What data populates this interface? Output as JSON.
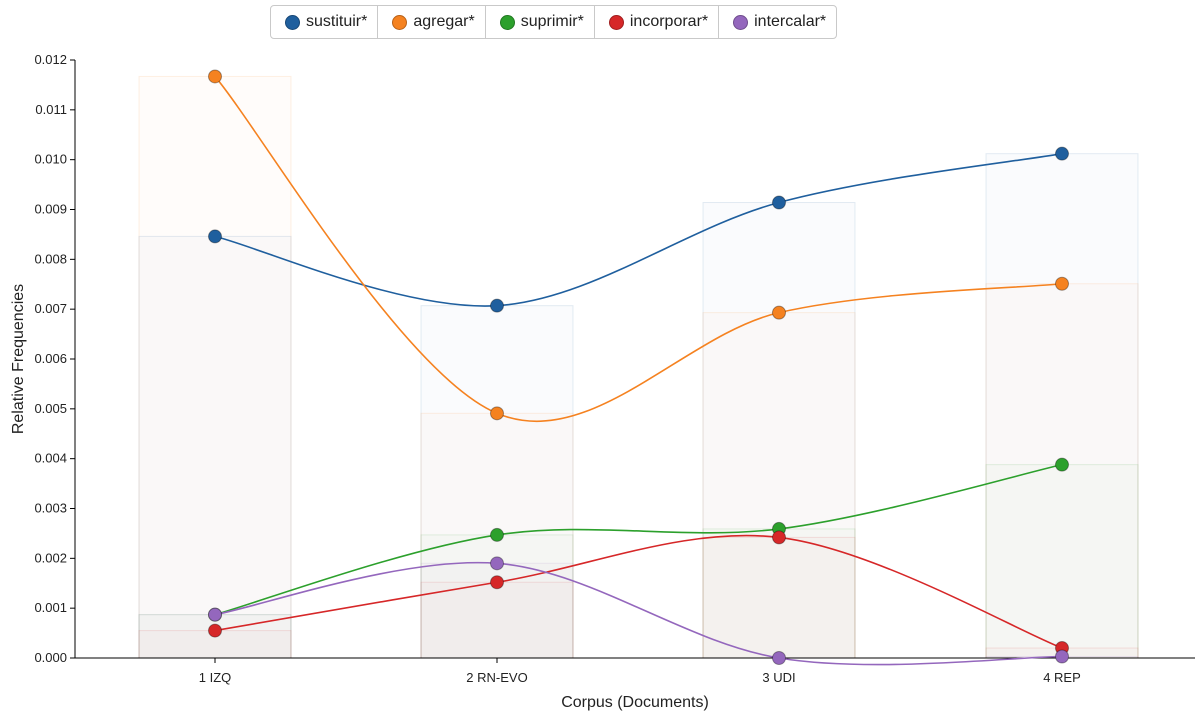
{
  "chart_data": {
    "type": "line",
    "xlabel": "Corpus (Documents)",
    "ylabel": "Relative Frequencies",
    "ylim": [
      0,
      0.012
    ],
    "yticks": [
      "0.000",
      "0.001",
      "0.002",
      "0.003",
      "0.004",
      "0.005",
      "0.006",
      "0.007",
      "0.008",
      "0.009",
      "0.010",
      "0.011",
      "0.012"
    ],
    "categories": [
      "1 IZQ",
      "2 RN-EVO",
      "3 UDI",
      "4 REP"
    ],
    "legend_position": "top",
    "series": [
      {
        "name": "sustituir*",
        "color": "#1f5f9e",
        "values": [
          0.00846,
          0.00707,
          0.00914,
          0.01012
        ]
      },
      {
        "name": "agregar*",
        "color": "#f58220",
        "values": [
          0.01167,
          0.00491,
          0.00693,
          0.00751
        ]
      },
      {
        "name": "suprimir*",
        "color": "#2ca02c",
        "values": [
          0.00087,
          0.00247,
          0.00259,
          0.00388
        ]
      },
      {
        "name": "incorporar*",
        "color": "#d62728",
        "values": [
          0.00055,
          0.00152,
          0.00242,
          0.0002
        ]
      },
      {
        "name": "intercalar*",
        "color": "#9467bd",
        "values": [
          0.00087,
          0.0019,
          0.0,
          3e-05
        ]
      }
    ]
  }
}
